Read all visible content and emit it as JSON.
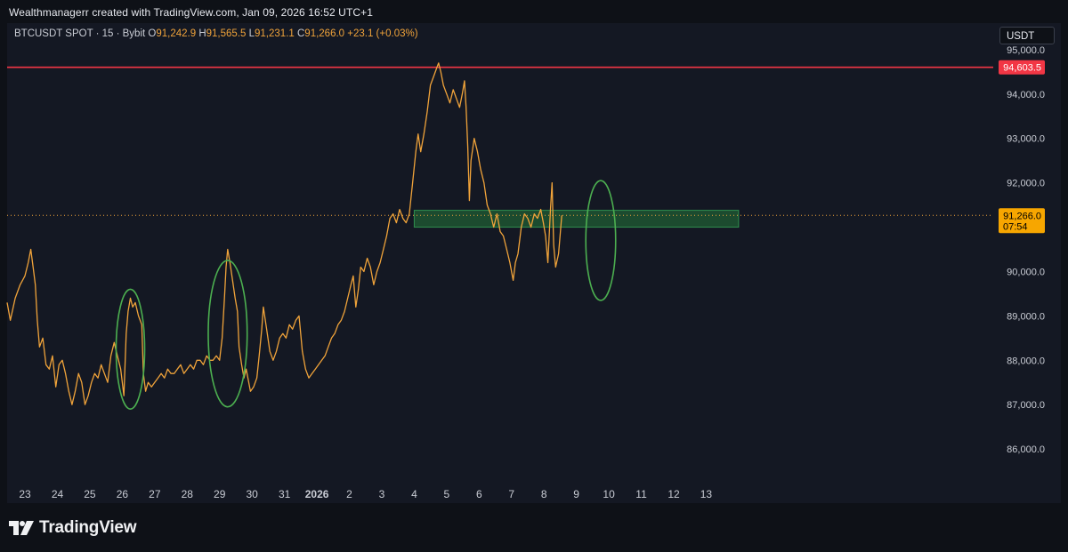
{
  "caption": "Wealthmanagerr created with TradingView.com, Jan 09, 2026 16:52 UTC+1",
  "symbol": {
    "title": "BTCUSDT SPOT · 15 · Bybit",
    "o_label": "O",
    "o_value": "91,242.9",
    "h_label": "H",
    "h_value": "91,565.5",
    "l_label": "L",
    "l_value": "91,231.1",
    "c_label": "C",
    "c_value": "91,266.0",
    "change": "+23.1 (+0.03%)"
  },
  "currency_button": "USDT",
  "brand": "TradingView",
  "colors": {
    "price_line": "#f0a33a",
    "resistance": "#f23645",
    "zone_fill": "#1f5c34",
    "zone_edge": "#2f8f4e",
    "ellipse": "#4caf50",
    "last_price_bg": "#f7a600",
    "axis_text": "#c9ccd4"
  },
  "chart_data": {
    "type": "line",
    "title": "",
    "xlabel": "",
    "ylabel": "",
    "ylim": [
      85300,
      95600
    ],
    "xlim": [
      22.45,
      52.85
    ],
    "x_ticks": [
      {
        "x": 23,
        "label": "23"
      },
      {
        "x": 24,
        "label": "24"
      },
      {
        "x": 25,
        "label": "25"
      },
      {
        "x": 26,
        "label": "26"
      },
      {
        "x": 27,
        "label": "27"
      },
      {
        "x": 28,
        "label": "28"
      },
      {
        "x": 29,
        "label": "29"
      },
      {
        "x": 30,
        "label": "30"
      },
      {
        "x": 31,
        "label": "31"
      },
      {
        "x": 32,
        "label": "2026",
        "bold": true
      },
      {
        "x": 33,
        "label": "2"
      },
      {
        "x": 34,
        "label": "3"
      },
      {
        "x": 35,
        "label": "4"
      },
      {
        "x": 36,
        "label": "5"
      },
      {
        "x": 37,
        "label": "6"
      },
      {
        "x": 38,
        "label": "7"
      },
      {
        "x": 39,
        "label": "8"
      },
      {
        "x": 40,
        "label": "9"
      },
      {
        "x": 41,
        "label": "10"
      },
      {
        "x": 42,
        "label": "11"
      },
      {
        "x": 43,
        "label": "12"
      },
      {
        "x": 44,
        "label": "13"
      }
    ],
    "y_ticks": [
      {
        "value": 95000,
        "label": "95,000.0"
      },
      {
        "value": 94000,
        "label": "94,000.0"
      },
      {
        "value": 93000,
        "label": "93,000.0"
      },
      {
        "value": 92000,
        "label": "92,000.0"
      },
      {
        "value": 90000,
        "label": "90,000.0"
      },
      {
        "value": 89000,
        "label": "89,000.0"
      },
      {
        "value": 88000,
        "label": "88,000.0"
      },
      {
        "value": 87000,
        "label": "87,000.0"
      },
      {
        "value": 86000,
        "label": "86,000.0"
      }
    ],
    "resistance": {
      "value": 94603.5,
      "label": "94,603.5"
    },
    "last_price": {
      "value": 91266.0,
      "label": "91,266.0",
      "countdown": "07:54"
    },
    "zone": {
      "from_x": 35.0,
      "to_x": 45.0,
      "low": 91000,
      "high": 91380
    },
    "ellipses": [
      {
        "cx": 26.25,
        "cy": 88250,
        "rx": 0.44,
        "ry": 1350
      },
      {
        "cx": 29.25,
        "cy": 88600,
        "rx": 0.6,
        "ry": 1650
      },
      {
        "cx": 40.75,
        "cy": 90700,
        "rx": 0.46,
        "ry": 1350
      }
    ],
    "series": [
      {
        "values": [
          [
            22.45,
            89300
          ],
          [
            22.55,
            88900
          ],
          [
            22.7,
            89400
          ],
          [
            22.85,
            89700
          ],
          [
            23.0,
            89900
          ],
          [
            23.1,
            90200
          ],
          [
            23.18,
            90500
          ],
          [
            23.25,
            90100
          ],
          [
            23.32,
            89700
          ],
          [
            23.38,
            88900
          ],
          [
            23.45,
            88300
          ],
          [
            23.55,
            88500
          ],
          [
            23.65,
            87900
          ],
          [
            23.75,
            87800
          ],
          [
            23.85,
            88100
          ],
          [
            23.95,
            87400
          ],
          [
            24.05,
            87900
          ],
          [
            24.15,
            88000
          ],
          [
            24.25,
            87700
          ],
          [
            24.35,
            87300
          ],
          [
            24.45,
            87000
          ],
          [
            24.55,
            87300
          ],
          [
            24.65,
            87700
          ],
          [
            24.75,
            87500
          ],
          [
            24.85,
            87000
          ],
          [
            24.95,
            87200
          ],
          [
            25.05,
            87500
          ],
          [
            25.15,
            87700
          ],
          [
            25.25,
            87600
          ],
          [
            25.35,
            87900
          ],
          [
            25.45,
            87700
          ],
          [
            25.55,
            87500
          ],
          [
            25.65,
            88100
          ],
          [
            25.75,
            88400
          ],
          [
            25.85,
            88100
          ],
          [
            25.95,
            87800
          ],
          [
            26.05,
            87200
          ],
          [
            26.12,
            88600
          ],
          [
            26.18,
            89100
          ],
          [
            26.25,
            89400
          ],
          [
            26.32,
            89200
          ],
          [
            26.4,
            89300
          ],
          [
            26.5,
            89000
          ],
          [
            26.6,
            88800
          ],
          [
            26.65,
            87700
          ],
          [
            26.72,
            87300
          ],
          [
            26.8,
            87500
          ],
          [
            26.9,
            87400
          ],
          [
            27.0,
            87500
          ],
          [
            27.1,
            87600
          ],
          [
            27.2,
            87700
          ],
          [
            27.3,
            87600
          ],
          [
            27.4,
            87800
          ],
          [
            27.5,
            87700
          ],
          [
            27.6,
            87700
          ],
          [
            27.7,
            87800
          ],
          [
            27.8,
            87900
          ],
          [
            27.9,
            87700
          ],
          [
            28.0,
            87800
          ],
          [
            28.1,
            87900
          ],
          [
            28.2,
            87800
          ],
          [
            28.3,
            88000
          ],
          [
            28.4,
            88000
          ],
          [
            28.5,
            87900
          ],
          [
            28.6,
            88100
          ],
          [
            28.7,
            88000
          ],
          [
            28.8,
            88000
          ],
          [
            28.9,
            88100
          ],
          [
            29.0,
            88000
          ],
          [
            29.08,
            88500
          ],
          [
            29.15,
            89400
          ],
          [
            29.2,
            90100
          ],
          [
            29.25,
            90500
          ],
          [
            29.32,
            90200
          ],
          [
            29.4,
            89800
          ],
          [
            29.48,
            89400
          ],
          [
            29.55,
            89100
          ],
          [
            29.6,
            88300
          ],
          [
            29.68,
            87900
          ],
          [
            29.75,
            87600
          ],
          [
            29.82,
            87800
          ],
          [
            29.9,
            87500
          ],
          [
            29.95,
            87300
          ],
          [
            30.05,
            87400
          ],
          [
            30.15,
            87600
          ],
          [
            30.22,
            88100
          ],
          [
            30.3,
            88700
          ],
          [
            30.35,
            89200
          ],
          [
            30.45,
            88700
          ],
          [
            30.55,
            88200
          ],
          [
            30.65,
            88000
          ],
          [
            30.75,
            88200
          ],
          [
            30.85,
            88500
          ],
          [
            30.95,
            88600
          ],
          [
            31.05,
            88500
          ],
          [
            31.15,
            88800
          ],
          [
            31.25,
            88700
          ],
          [
            31.35,
            88900
          ],
          [
            31.45,
            89000
          ],
          [
            31.55,
            88200
          ],
          [
            31.65,
            87800
          ],
          [
            31.75,
            87600
          ],
          [
            31.85,
            87700
          ],
          [
            31.95,
            87800
          ],
          [
            32.05,
            87900
          ],
          [
            32.15,
            88000
          ],
          [
            32.25,
            88100
          ],
          [
            32.35,
            88300
          ],
          [
            32.45,
            88500
          ],
          [
            32.55,
            88600
          ],
          [
            32.65,
            88800
          ],
          [
            32.75,
            88900
          ],
          [
            32.85,
            89100
          ],
          [
            32.95,
            89400
          ],
          [
            33.05,
            89700
          ],
          [
            33.12,
            89900
          ],
          [
            33.2,
            89200
          ],
          [
            33.28,
            89600
          ],
          [
            33.35,
            90100
          ],
          [
            33.45,
            90000
          ],
          [
            33.55,
            90300
          ],
          [
            33.65,
            90100
          ],
          [
            33.75,
            89700
          ],
          [
            33.85,
            90000
          ],
          [
            33.95,
            90200
          ],
          [
            34.05,
            90500
          ],
          [
            34.15,
            90800
          ],
          [
            34.25,
            91200
          ],
          [
            34.35,
            91300
          ],
          [
            34.45,
            91100
          ],
          [
            34.55,
            91400
          ],
          [
            34.65,
            91200
          ],
          [
            34.75,
            91100
          ],
          [
            34.85,
            91300
          ],
          [
            34.95,
            92000
          ],
          [
            35.05,
            92700
          ],
          [
            35.12,
            93100
          ],
          [
            35.2,
            92700
          ],
          [
            35.3,
            93100
          ],
          [
            35.4,
            93600
          ],
          [
            35.5,
            94200
          ],
          [
            35.6,
            94400
          ],
          [
            35.7,
            94600
          ],
          [
            35.75,
            94700
          ],
          [
            35.82,
            94500
          ],
          [
            35.9,
            94200
          ],
          [
            36.0,
            94000
          ],
          [
            36.1,
            93800
          ],
          [
            36.2,
            94100
          ],
          [
            36.3,
            93900
          ],
          [
            36.4,
            93700
          ],
          [
            36.48,
            94000
          ],
          [
            36.55,
            94300
          ],
          [
            36.6,
            93700
          ],
          [
            36.65,
            92800
          ],
          [
            36.7,
            91600
          ],
          [
            36.75,
            92500
          ],
          [
            36.85,
            93000
          ],
          [
            36.95,
            92700
          ],
          [
            37.05,
            92300
          ],
          [
            37.15,
            92000
          ],
          [
            37.25,
            91500
          ],
          [
            37.35,
            91300
          ],
          [
            37.45,
            91000
          ],
          [
            37.55,
            91300
          ],
          [
            37.65,
            90900
          ],
          [
            37.75,
            90800
          ],
          [
            37.85,
            90500
          ],
          [
            37.95,
            90200
          ],
          [
            38.05,
            89800
          ],
          [
            38.12,
            90200
          ],
          [
            38.2,
            90400
          ],
          [
            38.3,
            91000
          ],
          [
            38.4,
            91300
          ],
          [
            38.5,
            91200
          ],
          [
            38.6,
            91000
          ],
          [
            38.7,
            91300
          ],
          [
            38.8,
            91200
          ],
          [
            38.9,
            91400
          ],
          [
            38.98,
            91100
          ],
          [
            39.05,
            90800
          ],
          [
            39.12,
            90200
          ],
          [
            39.2,
            91400
          ],
          [
            39.25,
            92000
          ],
          [
            39.3,
            90600
          ],
          [
            39.36,
            90100
          ],
          [
            39.45,
            90400
          ],
          [
            39.55,
            91266
          ]
        ]
      }
    ]
  }
}
